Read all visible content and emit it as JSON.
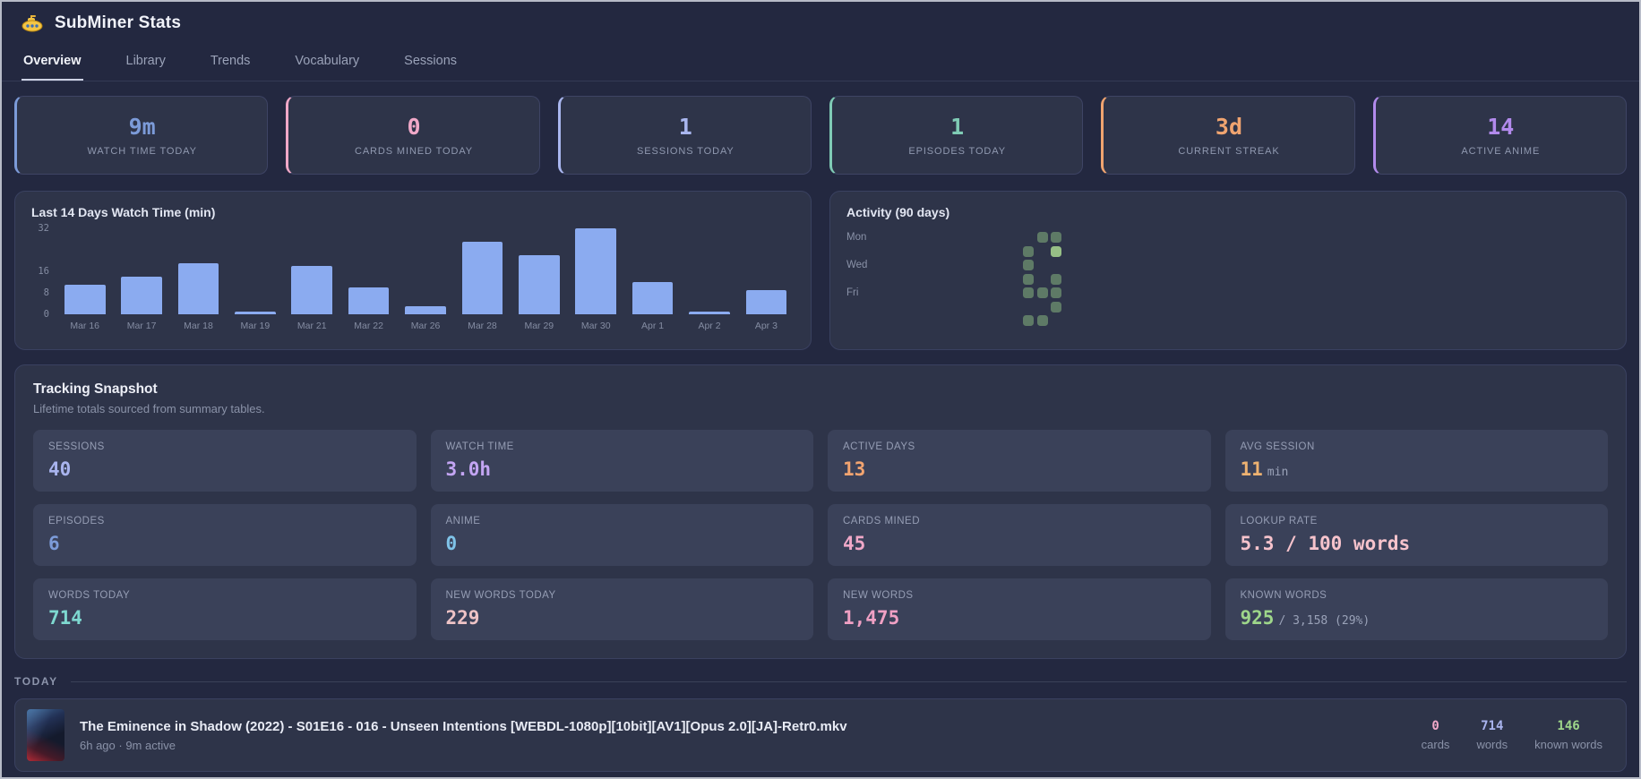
{
  "app": {
    "title": "SubMiner Stats"
  },
  "tabs": [
    {
      "label": "Overview",
      "active": true
    },
    {
      "label": "Library",
      "active": false
    },
    {
      "label": "Trends",
      "active": false
    },
    {
      "label": "Vocabulary",
      "active": false
    },
    {
      "label": "Sessions",
      "active": false
    }
  ],
  "stat_cards": [
    {
      "value": "9m",
      "label": "WATCH TIME TODAY",
      "color": "#7c9bd9"
    },
    {
      "value": "0",
      "label": "CARDS MINED TODAY",
      "color": "#f0a8c8"
    },
    {
      "value": "1",
      "label": "SESSIONS TODAY",
      "color": "#a9b6ef"
    },
    {
      "value": "1",
      "label": "EPISODES TODAY",
      "color": "#7fcbb5"
    },
    {
      "value": "3d",
      "label": "CURRENT STREAK",
      "color": "#f0a470"
    },
    {
      "value": "14",
      "label": "ACTIVE ANIME",
      "color": "#b28aec"
    }
  ],
  "chart_data": {
    "type": "bar",
    "title": "Last 14 Days Watch Time (min)",
    "categories": [
      "Mar 16",
      "Mar 17",
      "Mar 18",
      "Mar 19",
      "Mar 21",
      "Mar 22",
      "Mar 26",
      "Mar 28",
      "Mar 29",
      "Mar 30",
      "Apr 1",
      "Apr 2",
      "Apr 3"
    ],
    "values": [
      11,
      14,
      19,
      1,
      18,
      10,
      3,
      27,
      22,
      32,
      12,
      1,
      9
    ],
    "yticks": [
      0,
      8,
      16,
      32
    ],
    "ylim": [
      0,
      32
    ],
    "xlabel": "",
    "ylabel": "",
    "bar_color": "#8babf0",
    "grid": "off",
    "legend": "none"
  },
  "activity": {
    "title": "Activity (90 days)",
    "day_labels": [
      {
        "text": "Mon",
        "row": 0
      },
      {
        "text": "Wed",
        "row": 2
      },
      {
        "text": "Fri",
        "row": 4
      }
    ],
    "grid": {
      "rows": 7,
      "cols": 13
    },
    "colors": {
      "active": "#5e7a66",
      "peak": "#97bf86"
    },
    "cells": [
      {
        "col": 10,
        "row": 1,
        "peak": false
      },
      {
        "col": 10,
        "row": 2,
        "peak": false
      },
      {
        "col": 10,
        "row": 3,
        "peak": false
      },
      {
        "col": 10,
        "row": 4,
        "peak": false
      },
      {
        "col": 10,
        "row": 6,
        "peak": false
      },
      {
        "col": 11,
        "row": 0,
        "peak": false
      },
      {
        "col": 11,
        "row": 4,
        "peak": false
      },
      {
        "col": 11,
        "row": 6,
        "peak": false
      },
      {
        "col": 12,
        "row": 0,
        "peak": false
      },
      {
        "col": 12,
        "row": 1,
        "peak": true
      },
      {
        "col": 12,
        "row": 3,
        "peak": false
      },
      {
        "col": 12,
        "row": 4,
        "peak": false
      },
      {
        "col": 12,
        "row": 5,
        "peak": false
      }
    ]
  },
  "snapshot": {
    "title": "Tracking Snapshot",
    "subtitle": "Lifetime totals sourced from summary tables.",
    "cells": [
      {
        "label": "SESSIONS",
        "value": "40",
        "suffix": "",
        "color": "#a9b4ee"
      },
      {
        "label": "WATCH TIME",
        "value": "3.0h",
        "suffix": "",
        "color": "#c3a5f3"
      },
      {
        "label": "ACTIVE DAYS",
        "value": "13",
        "suffix": "",
        "color": "#f2a470"
      },
      {
        "label": "AVG SESSION",
        "value": "11",
        "suffix": "min",
        "color": "#eeb271"
      },
      {
        "label": "EPISODES",
        "value": "6",
        "suffix": "",
        "color": "#7c9bd9"
      },
      {
        "label": "ANIME",
        "value": "0",
        "suffix": "",
        "color": "#7fc3e8"
      },
      {
        "label": "CARDS MINED",
        "value": "45",
        "suffix": "",
        "color": "#f0a8c8"
      },
      {
        "label": "LOOKUP RATE",
        "value": "5.3 / 100 words",
        "suffix": "",
        "color": "#f6c3cc"
      },
      {
        "label": "WORDS TODAY",
        "value": "714",
        "suffix": "",
        "color": "#7ed8d0"
      },
      {
        "label": "NEW WORDS TODAY",
        "value": "229",
        "suffix": "",
        "color": "#eec3c6"
      },
      {
        "label": "NEW WORDS",
        "value": "1,475",
        "suffix": "",
        "color": "#f0a0c4"
      },
      {
        "label": "KNOWN WORDS",
        "value": "925",
        "suffix": "/ 3,158 (29%)",
        "color": "#9ed68a"
      }
    ]
  },
  "today": {
    "section_label": "TODAY",
    "episode": {
      "title": "The Eminence in Shadow (2022) - S01E16 - 016 - Unseen Intentions [WEBDL-1080p][10bit][AV1][Opus 2.0][JA]-Retr0.mkv",
      "meta": "6h ago · 9m active",
      "stats": [
        {
          "value": "0",
          "label": "cards",
          "color": "#f0a8c8"
        },
        {
          "value": "714",
          "label": "words",
          "color": "#a9b4ee"
        },
        {
          "value": "146",
          "label": "known words",
          "color": "#9ed68a"
        }
      ]
    }
  }
}
